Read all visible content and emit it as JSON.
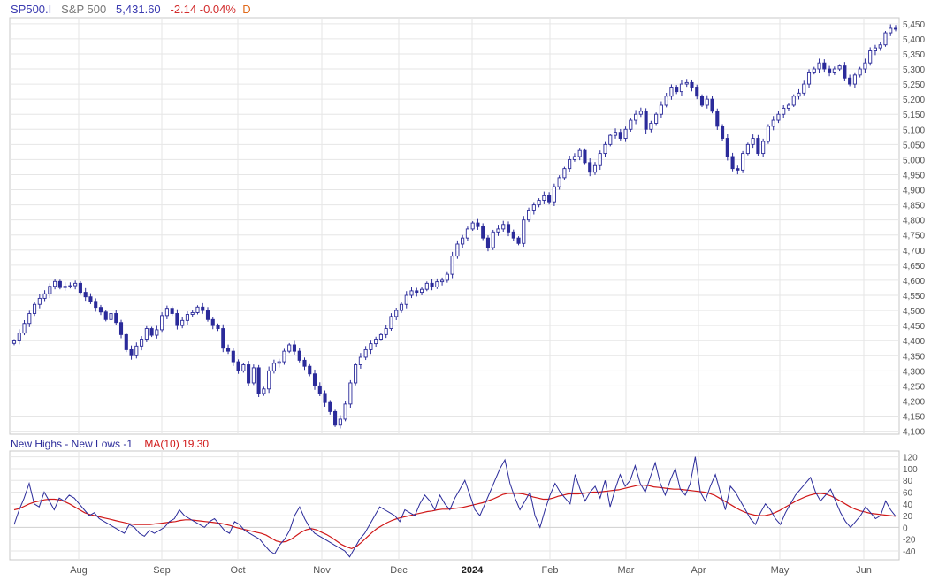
{
  "header": {
    "symbol": "SP500.I",
    "name": "S&P 500",
    "last": "5,431.60",
    "change": "-2.14",
    "change_pct": "-0.04%",
    "period": "D"
  },
  "indicator": {
    "title": "New Highs - New Lows -1",
    "ma_label": "MA(10)",
    "ma_value": "19.30"
  },
  "colors": {
    "price_candle": "#2b2b9a",
    "symbol_text": "#3a3ab0",
    "change_text": "#d22b2b",
    "indicator_line": "#2b2b9a",
    "ma_line": "#d01818",
    "grid": "#e6e6e6",
    "axis_text": "#555555"
  },
  "chart_data": [
    {
      "type": "candlestick",
      "title": "S&P 500",
      "y_ticks": [
        "4,100",
        "4,150",
        "4,200",
        "4,250",
        "4,300",
        "4,350",
        "4,400",
        "4,450",
        "4,500",
        "4,550",
        "4,600",
        "4,650",
        "4,700",
        "4,750",
        "4,800",
        "4,850",
        "4,900",
        "4,950",
        "5,000",
        "5,050",
        "5,100",
        "5,150",
        "5,200",
        "5,250",
        "5,300",
        "5,350",
        "5,400",
        "5,450"
      ],
      "ylim": [
        4090,
        5470
      ],
      "grid": true,
      "x_labels": [
        "Aug",
        "Sep",
        "Oct",
        "Nov",
        "Dec",
        "2024",
        "Feb",
        "Mar",
        "Apr",
        "May",
        "Jun"
      ],
      "series": [
        {
          "values": [
            4399,
            4425,
            4457,
            4490,
            4520,
            4540,
            4555,
            4580,
            4596,
            4576,
            4580,
            4582,
            4590,
            4560,
            4545,
            4530,
            4510,
            4495,
            4470,
            4490,
            4460,
            4420,
            4370,
            4350,
            4382,
            4405,
            4440,
            4418,
            4436,
            4483,
            4507,
            4490,
            4450,
            4467,
            4487,
            4493,
            4511,
            4500,
            4470,
            4450,
            4440,
            4375,
            4365,
            4330,
            4300,
            4320,
            4260,
            4310,
            4225,
            4240,
            4300,
            4325,
            4330,
            4365,
            4386,
            4365,
            4335,
            4315,
            4290,
            4250,
            4225,
            4195,
            4165,
            4120,
            4140,
            4190,
            4260,
            4320,
            4345,
            4370,
            4390,
            4405,
            4420,
            4440,
            4480,
            4500,
            4520,
            4550,
            4565,
            4560,
            4570,
            4590,
            4578,
            4595,
            4600,
            4620,
            4680,
            4720,
            4740,
            4770,
            4790,
            4778,
            4740,
            4708,
            4760,
            4770,
            4785,
            4760,
            4740,
            4722,
            4800,
            4830,
            4850,
            4865,
            4880,
            4860,
            4910,
            4940,
            4970,
            5000,
            5010,
            5030,
            4990,
            4958,
            4980,
            5020,
            5050,
            5080,
            5090,
            5070,
            5100,
            5130,
            5150,
            5160,
            5100,
            5120,
            5150,
            5180,
            5210,
            5240,
            5225,
            5250,
            5255,
            5240,
            5210,
            5180,
            5200,
            5160,
            5110,
            5070,
            5010,
            4970,
            4965,
            5020,
            5050,
            5070,
            5020,
            5060,
            5110,
            5130,
            5150,
            5170,
            5180,
            5210,
            5220,
            5250,
            5290,
            5300,
            5320,
            5300,
            5290,
            5300,
            5310,
            5270,
            5250,
            5280,
            5300,
            5320,
            5360,
            5370,
            5380,
            5420,
            5435,
            5432
          ]
        }
      ]
    },
    {
      "type": "line",
      "title": "New Highs - New Lows -1",
      "y_ticks": [
        "-40",
        "-20",
        "0",
        "20",
        "40",
        "60",
        "80",
        "100",
        "120"
      ],
      "ylim": [
        -55,
        130
      ],
      "grid": true,
      "series": [
        {
          "name": "New Highs - New Lows -1",
          "values": [
            5,
            30,
            50,
            75,
            40,
            35,
            60,
            45,
            30,
            50,
            45,
            55,
            50,
            40,
            30,
            20,
            25,
            15,
            10,
            5,
            0,
            -5,
            -10,
            5,
            0,
            -10,
            -15,
            -5,
            -10,
            -5,
            0,
            10,
            15,
            30,
            20,
            15,
            10,
            5,
            0,
            10,
            15,
            5,
            -5,
            -10,
            10,
            5,
            -5,
            -10,
            -15,
            -20,
            -30,
            -40,
            -45,
            -30,
            -20,
            -5,
            20,
            35,
            15,
            0,
            -10,
            -15,
            -20,
            -25,
            -30,
            -35,
            -40,
            -50,
            -35,
            -20,
            -10,
            5,
            20,
            35,
            30,
            25,
            20,
            10,
            30,
            25,
            20,
            40,
            55,
            45,
            30,
            55,
            40,
            30,
            50,
            65,
            80,
            55,
            30,
            20,
            40,
            60,
            80,
            100,
            115,
            75,
            50,
            30,
            45,
            60,
            20,
            0,
            30,
            55,
            75,
            60,
            50,
            40,
            90,
            65,
            45,
            60,
            70,
            50,
            80,
            35,
            65,
            90,
            70,
            80,
            105,
            75,
            60,
            85,
            110,
            75,
            55,
            80,
            100,
            65,
            55,
            75,
            120,
            60,
            45,
            70,
            90,
            60,
            30,
            70,
            60,
            45,
            30,
            15,
            5,
            25,
            40,
            30,
            15,
            5,
            25,
            40,
            55,
            65,
            75,
            85,
            60,
            45,
            55,
            65,
            45,
            25,
            10,
            0,
            10,
            20,
            35,
            25,
            15,
            20,
            45,
            30,
            19
          ]
        },
        {
          "name": "MA(10)",
          "values": [
            30,
            32,
            36,
            40,
            43,
            45,
            47,
            48,
            48,
            47,
            44,
            40,
            35,
            30,
            25,
            22,
            20,
            18,
            16,
            14,
            12,
            10,
            8,
            6,
            5,
            5,
            5,
            5,
            6,
            7,
            8,
            9,
            10,
            12,
            13,
            13,
            12,
            11,
            10,
            9,
            8,
            7,
            5,
            3,
            0,
            -2,
            -4,
            -6,
            -8,
            -10,
            -13,
            -18,
            -23,
            -25,
            -24,
            -20,
            -14,
            -8,
            -4,
            -2,
            -4,
            -8,
            -12,
            -17,
            -23,
            -29,
            -33,
            -36,
            -32,
            -25,
            -17,
            -9,
            -2,
            3,
            8,
            12,
            15,
            17,
            19,
            21,
            23,
            25,
            27,
            28,
            30,
            31,
            31,
            32,
            33,
            34,
            36,
            38,
            40,
            42,
            45,
            48,
            52,
            56,
            58,
            58,
            58,
            57,
            55,
            52,
            50,
            48,
            48,
            50,
            53,
            55,
            57,
            57,
            57,
            58,
            59,
            60,
            60,
            61,
            62,
            63,
            64,
            66,
            68,
            70,
            72,
            72,
            71,
            69,
            68,
            67,
            66,
            65,
            65,
            64,
            63,
            62,
            61,
            60,
            58,
            55,
            50,
            45,
            40,
            35,
            30,
            26,
            23,
            21,
            20,
            20,
            22,
            25,
            29,
            34,
            39,
            44,
            48,
            52,
            55,
            57,
            58,
            57,
            54,
            50,
            45,
            40,
            35,
            31,
            28,
            26,
            24,
            23,
            22,
            21,
            20,
            19
          ]
        }
      ]
    }
  ]
}
